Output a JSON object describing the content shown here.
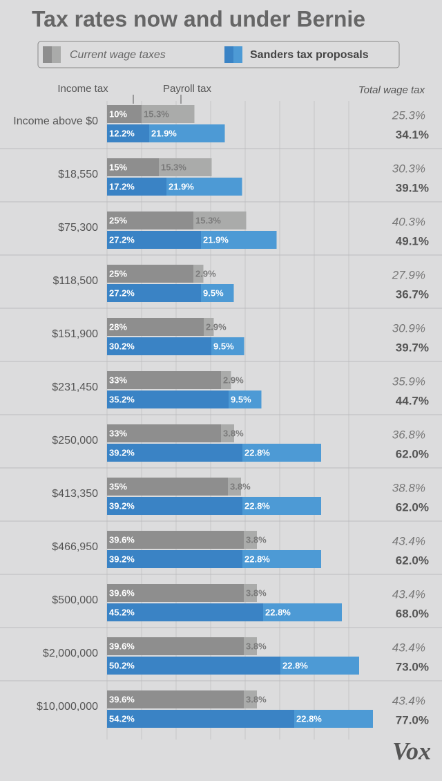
{
  "chart_data": {
    "type": "grouped-stacked-bar",
    "orientation": "horizontal",
    "title": "Tax rates now and under Bernie",
    "column_labels": [
      "Income tax",
      "Payroll tax",
      "Total wage tax"
    ],
    "categories": [
      "Income above $0",
      "$18,550",
      "$75,300",
      "$118,500",
      "$151,900",
      "$231,450",
      "$250,000",
      "$413,350",
      "$466,950",
      "$500,000",
      "$2,000,000",
      "$10,000,000"
    ],
    "series": [
      {
        "name": "Current wage taxes",
        "colors": [
          "#8e8e8e",
          "#aaabaa"
        ],
        "income": [
          10,
          15,
          25,
          25,
          28,
          33,
          33,
          35,
          39.6,
          39.6,
          39.6,
          39.6
        ],
        "income_labels": [
          "10%",
          "15%",
          "25%",
          "25%",
          "28%",
          "33%",
          "33%",
          "35%",
          "39.6%",
          "39.6%",
          "39.6%",
          "39.6%"
        ],
        "payroll": [
          15.3,
          15.3,
          15.3,
          2.9,
          2.9,
          2.9,
          3.8,
          3.8,
          3.8,
          3.8,
          3.8,
          3.8
        ],
        "payroll_labels": [
          "15.3%",
          "15.3%",
          "15.3%",
          "2.9%",
          "2.9%",
          "2.9%",
          "3.8%",
          "3.8%",
          "3.8%",
          "3.8%",
          "3.8%",
          "3.8%"
        ],
        "totals": [
          25.3,
          30.3,
          40.3,
          27.9,
          30.9,
          35.9,
          36.8,
          38.8,
          43.4,
          43.4,
          43.4,
          43.4
        ],
        "total_labels": [
          "25.3%",
          "30.3%",
          "40.3%",
          "27.9%",
          "30.9%",
          "35.9%",
          "36.8%",
          "38.8%",
          "43.4%",
          "43.4%",
          "43.4%",
          "43.4%"
        ]
      },
      {
        "name": "Sanders tax proposals",
        "colors": [
          "#3a83c5",
          "#4d9ad5"
        ],
        "income": [
          12.2,
          17.2,
          27.2,
          27.2,
          30.2,
          35.2,
          39.2,
          39.2,
          39.2,
          45.2,
          50.2,
          54.2
        ],
        "income_labels": [
          "12.2%",
          "17.2%",
          "27.2%",
          "27.2%",
          "30.2%",
          "35.2%",
          "39.2%",
          "39.2%",
          "39.2%",
          "45.2%",
          "50.2%",
          "54.2%"
        ],
        "payroll": [
          21.9,
          21.9,
          21.9,
          9.5,
          9.5,
          9.5,
          22.8,
          22.8,
          22.8,
          22.8,
          22.8,
          22.8
        ],
        "payroll_labels": [
          "21.9%",
          "21.9%",
          "21.9%",
          "9.5%",
          "9.5%",
          "9.5%",
          "22.8%",
          "22.8%",
          "22.8%",
          "22.8%",
          "22.8%",
          "22.8%"
        ],
        "totals": [
          34.1,
          39.1,
          49.1,
          36.7,
          39.7,
          44.7,
          62.0,
          62.0,
          62.0,
          68.0,
          73.0,
          77.0
        ],
        "total_labels": [
          "34.1%",
          "39.1%",
          "49.1%",
          "36.7%",
          "39.7%",
          "44.7%",
          "62.0%",
          "62.0%",
          "62.0%",
          "68.0%",
          "73.0%",
          "77.0%"
        ]
      }
    ],
    "xlim": [
      0,
      80
    ],
    "xticks": [
      0,
      10,
      20,
      30,
      40,
      50,
      60,
      70
    ],
    "grid": true,
    "logo": "Vox"
  }
}
